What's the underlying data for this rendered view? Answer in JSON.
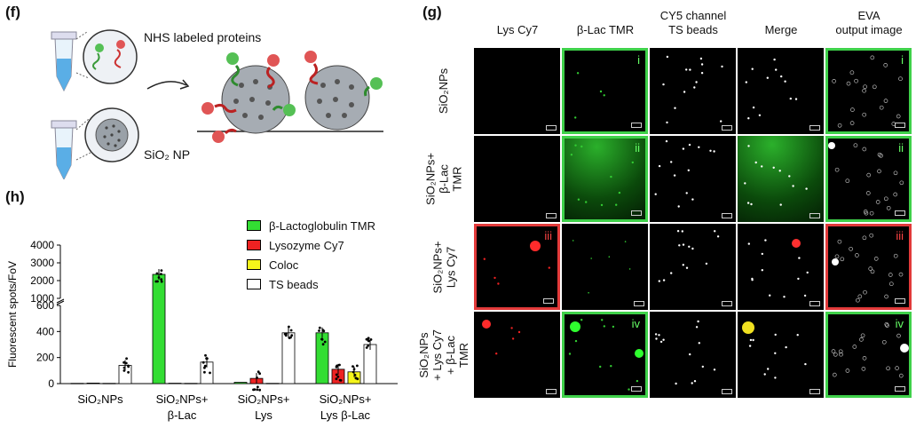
{
  "panels": {
    "f": "(f)",
    "g": "(g)",
    "h": "(h)"
  },
  "panel_f": {
    "nhs_label": "NHS labeled proteins",
    "sio2_label": "SiO₂ NP"
  },
  "panel_h": {
    "legend": [
      {
        "label": "β-Lactoglobulin TMR",
        "color": "#33dd33"
      },
      {
        "label": "Lysozyme Cy7",
        "color": "#ee2222"
      },
      {
        "label": "Coloc",
        "color": "#f5f51a"
      },
      {
        "label": "TS beads",
        "color": "#ffffff"
      }
    ]
  },
  "chart_data": {
    "type": "bar",
    "ylabel": "Fluorescent spots/FoV",
    "yticks_upper": [
      "4000",
      "3000",
      "2000",
      "1000"
    ],
    "yticks_lower": [
      "600",
      "400",
      "200",
      "0"
    ],
    "ylim_lower": [
      0,
      600
    ],
    "ylim_upper": [
      1000,
      4000
    ],
    "categories": [
      "SiO₂NPs",
      "SiO₂NPs+ β-Lac",
      "SiO₂NPs+ Lys",
      "SiO₂NPs+ Lys β-Lac"
    ],
    "series": [
      {
        "name": "β-Lactoglobulin TMR",
        "values": [
          2,
          2350,
          10,
          390
        ]
      },
      {
        "name": "Lysozyme Cy7",
        "values": [
          4,
          3,
          40,
          110
        ]
      },
      {
        "name": "Coloc",
        "values": [
          2,
          2,
          2,
          90
        ]
      },
      {
        "name": "TS beads",
        "values": [
          140,
          165,
          390,
          300
        ]
      }
    ]
  },
  "panel_g": {
    "columns": [
      "Lys Cy7",
      "β-Lac TMR",
      "CY5 channel\nTS beads",
      "Merge",
      "EVA\noutput image"
    ],
    "rows": [
      "SiO₂NPs",
      "SiO₂NPs+\nβ-Lac TMR",
      "SiO₂NPs+\nLys Cy7",
      "SiO₂NPs\n+ Lys Cy7\n+ β-Lac TMR"
    ],
    "romans": [
      "i",
      "ii",
      "iii",
      "iv"
    ]
  }
}
